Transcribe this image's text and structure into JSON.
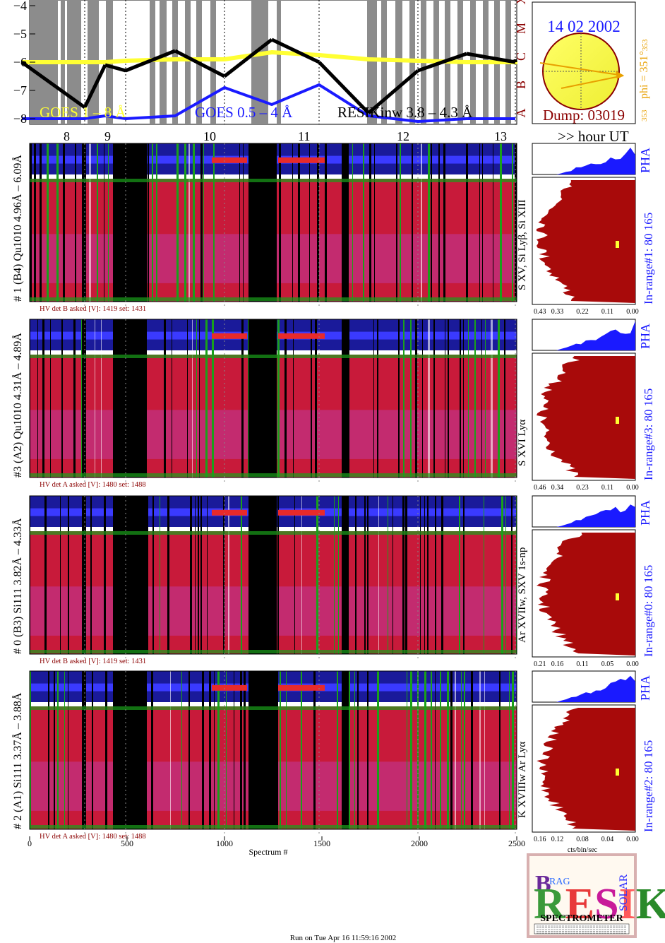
{
  "header": {
    "date": "14 02 2002",
    "dump": "Dump: 03019",
    "phi": "phi = 351°",
    "phi_sub": "353",
    "phi_small": "353",
    "hour_label": ">> hour UT"
  },
  "goes": {
    "y_ticks": [
      "−4",
      "−5",
      "−6",
      "−7",
      "−8"
    ],
    "classes": [
      "X",
      "M",
      "C",
      "B",
      "A"
    ],
    "label_1_8": "GOES 1 – 8 Å",
    "label_05_4": "GOES 0.5 – 4 Å",
    "label_resik": "RESIKinw 3.8 – 4.3 Å",
    "hours": [
      "8",
      "9",
      "10",
      "11",
      "12",
      "13"
    ]
  },
  "channels": [
    {
      "ylabel": "# 1 (B4) Qu1010 4.96Å – 6.09Å",
      "hv": "HV det B asked [V]:  1419 set:  1431",
      "range": "In-range#1:   80 165",
      "lines": "S XV, Si Lyβ, Si XIII",
      "pha": "PHA",
      "ticks": [
        "0.43",
        "0.33",
        "0.22",
        "0.11",
        "0.00"
      ]
    },
    {
      "ylabel": "#3 (A2) Qu1010  4.31Å – 4.89Å",
      "hv": "HV det A asked [V]:  1480 set:  1488",
      "range": "In-range#3:   80 165",
      "lines": "S XVI Lyα",
      "pha": "PHA",
      "ticks": [
        "0.46",
        "0.34",
        "0.23",
        "0.11",
        "0.00"
      ]
    },
    {
      "ylabel": "# 0 (B3) Si111  3.82Å – 4.33Å",
      "hv": "HV det B asked [V]:  1419 set:  1431",
      "range": "In-range#0:   80 165",
      "lines": "Ar XVIIw, SXV 1s-np",
      "pha": "PHA",
      "ticks": [
        "0.21",
        "0.16",
        "0.11",
        "0.05",
        "0.00"
      ]
    },
    {
      "ylabel": "# 2 (A1) Si111  3.37Å – 3.88Å",
      "hv": "HV det A asked [V]:  1480 set:  1488",
      "range": "In-range#2:   80 165",
      "lines": "K XVIIIw  Ar Lyα",
      "pha": "PHA",
      "ticks": [
        "0.16",
        "0.12",
        "0.08",
        "0.04",
        "0.00"
      ]
    }
  ],
  "xaxis": {
    "ticks": [
      "0",
      "500",
      "1000",
      "1500",
      "2000",
      "2500"
    ],
    "label": "Spectrum #",
    "pha_label": "cts/bin/sec"
  },
  "logo": {
    "big": "RESIK",
    "b": "B",
    "rag": "RAG",
    "solar": "SOLAR",
    "spectrometer": "SPECTROMETER"
  },
  "footer": "Run on Tue Apr 16 11:59:16 2002",
  "chart_data": {
    "type": "line",
    "x_hours": [
      7.6,
      8.0,
      8.5,
      9.0,
      9.5,
      10.0,
      10.5,
      11.0,
      11.5,
      12.0,
      12.5,
      13.0,
      13.3
    ],
    "ylim": [
      -8.2,
      -3.8
    ],
    "series": [
      {
        "name": "GOES 1 – 8 Å",
        "values": [
          -6.0,
          -6.0,
          -6.0,
          -5.95,
          -5.9,
          -5.9,
          -5.65,
          -5.75,
          -5.9,
          -5.95,
          -6.0,
          -6.0,
          -5.95
        ]
      },
      {
        "name": "GOES 0.5 – 4 Å",
        "values": [
          -8.0,
          -8.0,
          -7.9,
          -8.0,
          -7.9,
          -6.9,
          -7.5,
          -6.8,
          -7.9,
          -8.1,
          -8.0,
          -8.0,
          -8.0
        ]
      },
      {
        "values": [
          -6.0,
          -7.6,
          -6.1,
          -6.3,
          -5.6,
          -6.5,
          -5.2,
          -6.0,
          -7.8,
          -6.3,
          -5.7,
          -6.0,
          -5.9
        ]
      }
    ],
    "spectrum_range": [
      0,
      2500
    ],
    "hour_ticks": [
      8,
      9,
      10,
      11,
      12,
      13
    ]
  }
}
